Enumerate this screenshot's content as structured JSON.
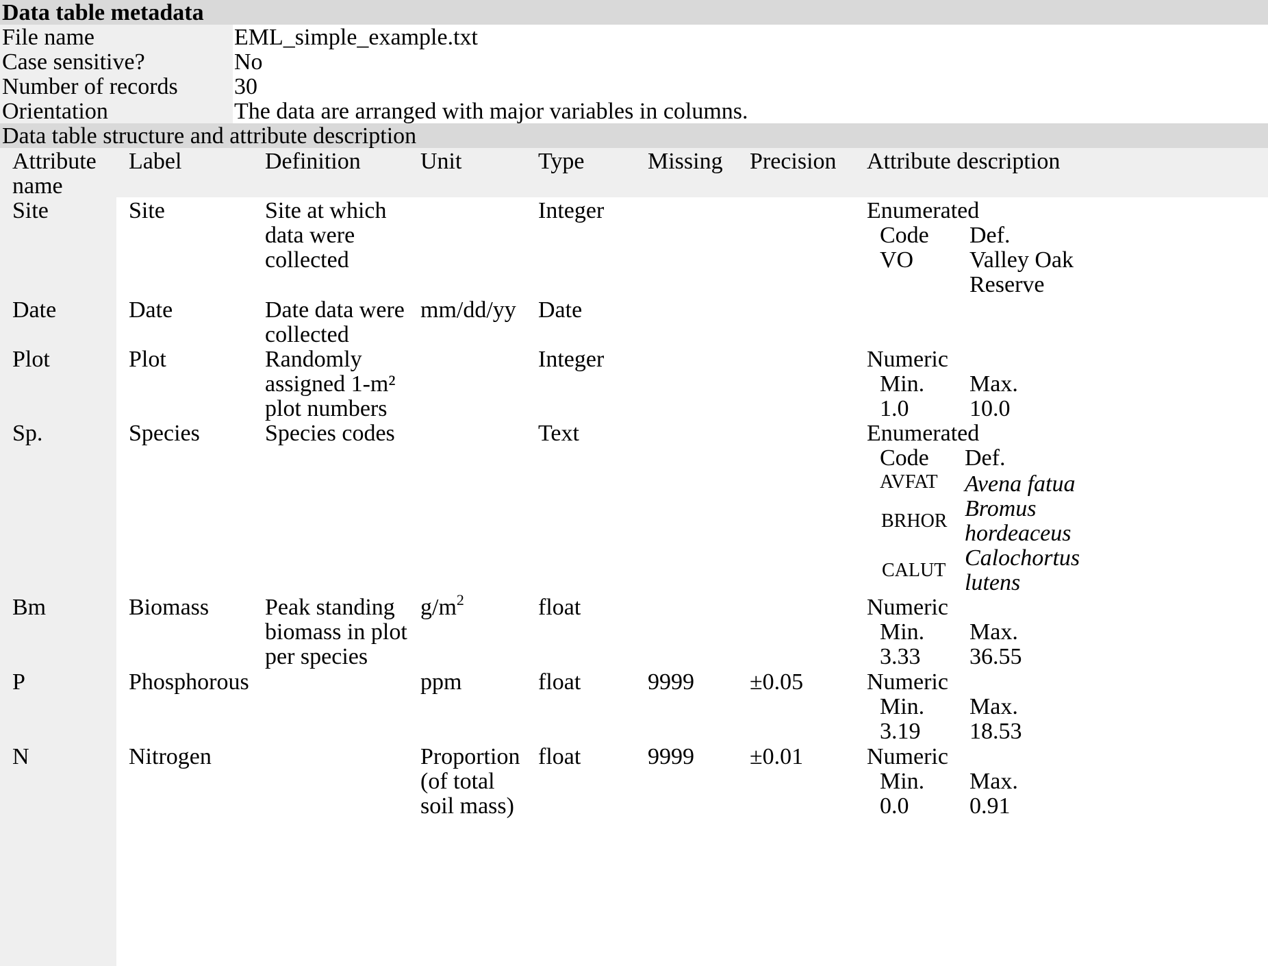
{
  "metadata": {
    "heading": "Data table metadata",
    "rows": [
      {
        "label": "File name",
        "value": "EML_simple_example.txt"
      },
      {
        "label": "Case sensitive?",
        "value": "No"
      },
      {
        "label": "Number of records",
        "value": "30"
      },
      {
        "label": "Orientation",
        "value": "The data are arranged with major variables in columns."
      }
    ]
  },
  "structure": {
    "heading": "Data table structure and attribute description",
    "columns": {
      "attr_name_1": "Attribute",
      "attr_name_2": "name",
      "label": "Label",
      "definition": "Definition",
      "unit": "Unit",
      "type": "Type",
      "missing": "Missing",
      "precision": "Precision",
      "attr_desc": "Attribute description"
    },
    "rows": [
      {
        "name": "Site",
        "label": "Site",
        "definition": [
          "Site at which",
          "data were",
          "collected"
        ],
        "unit": [],
        "type": "Integer",
        "missing": "",
        "precision": "",
        "desc_kind": "Enumerated",
        "desc_headers": [
          "Code",
          "Def."
        ],
        "desc_rows": [
          {
            "code": "VO",
            "def": [
              "Valley Oak",
              "Reserve"
            ]
          }
        ]
      },
      {
        "name": "Date",
        "label": "Date",
        "definition": [
          "Date data were",
          "collected"
        ],
        "unit": [
          "mm/dd/yy"
        ],
        "type": "Date",
        "missing": "",
        "precision": ""
      },
      {
        "name": "Plot",
        "label": "Plot",
        "definition": [
          "Randomly",
          "assigned 1-m²",
          "plot numbers"
        ],
        "unit": [],
        "type": "Integer",
        "missing": "",
        "precision": "",
        "desc_kind": "Numeric",
        "desc_headers": [
          "Min.",
          "Max."
        ],
        "desc_values": [
          "1.0",
          "10.0"
        ]
      },
      {
        "name": "Sp.",
        "label": "Species",
        "definition": [
          "Species codes"
        ],
        "unit": [],
        "type": "Text",
        "missing": "",
        "precision": "",
        "desc_kind": "Enumerated",
        "desc_headers": [
          "Code",
          "Def."
        ],
        "desc_rows": [
          {
            "code": "AVFAT",
            "def": [
              "Avena fatua"
            ]
          },
          {
            "code": "BRHOR",
            "def": [
              "Bromus",
              "hordeaceus"
            ]
          },
          {
            "code": "CALUT",
            "def": [
              "Calochortus",
              "lutens"
            ]
          }
        ]
      },
      {
        "name": "Bm",
        "label": "Biomass",
        "definition": [
          "Peak standing",
          "biomass in plot",
          "per species"
        ],
        "unit_base": "g/m",
        "unit_sup": "2",
        "type": "float",
        "missing": "",
        "precision": "",
        "desc_kind": "Numeric",
        "desc_headers": [
          "Min.",
          "Max."
        ],
        "desc_values": [
          "3.33",
          "36.55"
        ]
      },
      {
        "name": "P",
        "label": "Phosphorous",
        "definition": [],
        "unit": [
          "ppm"
        ],
        "type": "float",
        "missing": "9999",
        "precision": "±0.05",
        "desc_kind": "Numeric",
        "desc_headers": [
          "Min.",
          "Max."
        ],
        "desc_values": [
          "3.19",
          "18.53"
        ]
      },
      {
        "name": "N",
        "label": "Nitrogen",
        "definition": [],
        "unit": [
          "Proportion",
          "(of total",
          "soil mass)"
        ],
        "type": "float",
        "missing": "9999",
        "precision": "±0.01",
        "desc_kind": "Numeric",
        "desc_headers": [
          "Min.",
          "Max."
        ],
        "desc_values": [
          "0.0",
          "0.91"
        ]
      }
    ]
  }
}
